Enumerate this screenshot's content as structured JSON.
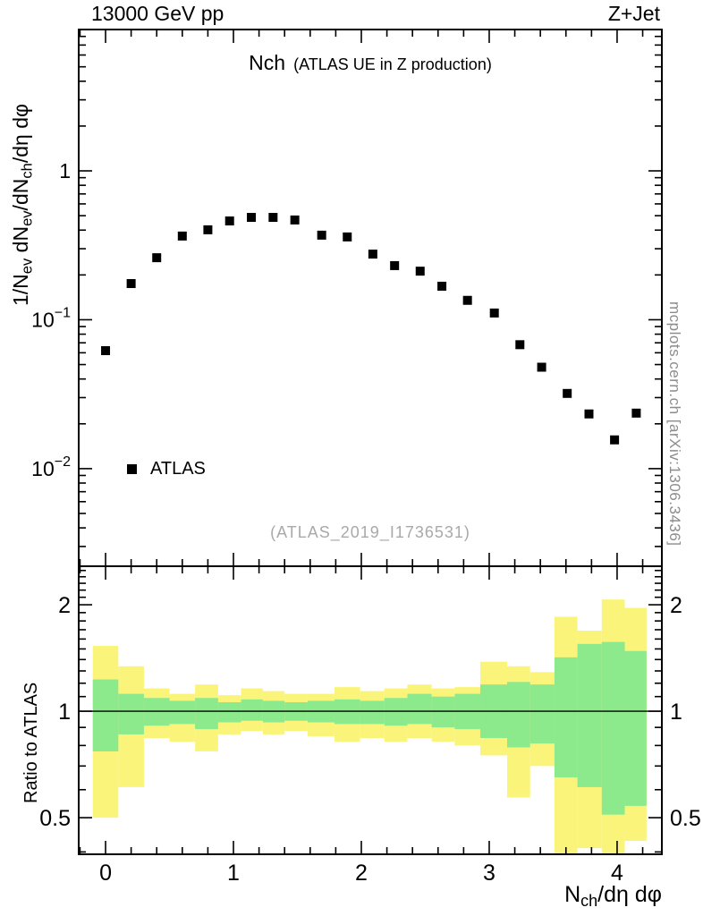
{
  "chart_data": {
    "type": "scatter",
    "top_left": "13000 GeV pp",
    "top_right": "Z+Jet",
    "title": "Nch",
    "title_suffix": "(ATLAS UE in Z production)",
    "watermark": "(ATLAS_2019_I1736531)",
    "side_note": "mcplots.cern.ch [arXiv:1306.3436]",
    "ratio_ylabel": "Ratio to ATLAS",
    "ylabel_parts": [
      {
        "t": "1/N"
      },
      {
        "t": "ev",
        "sub": true
      },
      {
        "t": " dN"
      },
      {
        "t": "ev",
        "sub": true
      },
      {
        "t": "/dN"
      },
      {
        "t": "ch",
        "sub": true
      },
      {
        "t": "/dη dφ"
      }
    ],
    "xlabel_parts": [
      {
        "t": "N"
      },
      {
        "t": "ch",
        "sub": true
      },
      {
        "t": "/dη dφ"
      }
    ],
    "legend": [
      {
        "label": "ATLAS",
        "marker": "filled-square",
        "color": "#000000"
      }
    ],
    "x_range": [
      -0.21,
      4.35
    ],
    "main_y_log_range": [
      0.00221,
      8.9
    ],
    "ratio_y_log_range": [
      0.394,
      2.57
    ],
    "x_major_ticks": [
      0,
      1,
      2,
      3,
      4
    ],
    "x_minor_step": 0.2,
    "main_y_major_ticks": [
      {
        "value": 1,
        "base": "1",
        "exp": ""
      },
      {
        "value": 0.1,
        "base": "10",
        "exp": "−1"
      },
      {
        "value": 0.01,
        "base": "10",
        "exp": "−2"
      }
    ],
    "ratio_y_major_ticks": [
      {
        "value": 0.5,
        "label": "0.5"
      },
      {
        "value": 1,
        "label": "1"
      },
      {
        "value": 2,
        "label": "2"
      }
    ],
    "ratio_y_minor_ticks": [
      0.4,
      0.6,
      0.7,
      0.8,
      0.9,
      1.1,
      1.2,
      1.3,
      1.4,
      1.5,
      1.6,
      1.7,
      1.8,
      1.9,
      2.1,
      2.2,
      2.3,
      2.4,
      2.5
    ],
    "series": [
      {
        "name": "ATLAS",
        "marker": "square",
        "color": "#000000",
        "points": [
          [
            0.0,
            0.062
          ],
          [
            0.2,
            0.175
          ],
          [
            0.4,
            0.261
          ],
          [
            0.6,
            0.365
          ],
          [
            0.8,
            0.402
          ],
          [
            0.97,
            0.461
          ],
          [
            1.14,
            0.487
          ],
          [
            1.31,
            0.487
          ],
          [
            1.48,
            0.468
          ],
          [
            1.69,
            0.37
          ],
          [
            1.89,
            0.36
          ],
          [
            2.09,
            0.276
          ],
          [
            2.26,
            0.231
          ],
          [
            2.46,
            0.212
          ],
          [
            2.63,
            0.168
          ],
          [
            2.83,
            0.135
          ],
          [
            3.04,
            0.111
          ],
          [
            3.24,
            0.068
          ],
          [
            3.41,
            0.048
          ],
          [
            3.61,
            0.032
          ],
          [
            3.78,
            0.0233
          ],
          [
            3.98,
            0.0156
          ],
          [
            4.15,
            0.0236
          ]
        ]
      }
    ],
    "ratio": {
      "line_y": 1,
      "yellow_color": "#faf57a",
      "green_color": "#8ce98c",
      "bands": [
        {
          "x": [
            -0.1,
            0.1
          ],
          "yellow": [
            0.5,
            1.53
          ],
          "green": [
            0.77,
            1.23
          ]
        },
        {
          "x": [
            0.1,
            0.3
          ],
          "yellow": [
            0.61,
            1.34
          ],
          "green": [
            0.86,
            1.12
          ]
        },
        {
          "x": [
            0.3,
            0.5
          ],
          "yellow": [
            0.84,
            1.16
          ],
          "green": [
            0.91,
            1.09
          ]
        },
        {
          "x": [
            0.5,
            0.7
          ],
          "yellow": [
            0.82,
            1.12
          ],
          "green": [
            0.92,
            1.07
          ]
        },
        {
          "x": [
            0.7,
            0.88
          ],
          "yellow": [
            0.77,
            1.19
          ],
          "green": [
            0.89,
            1.09
          ]
        },
        {
          "x": [
            0.88,
            1.06
          ],
          "yellow": [
            0.86,
            1.11
          ],
          "green": [
            0.93,
            1.06
          ]
        },
        {
          "x": [
            1.06,
            1.23
          ],
          "yellow": [
            0.88,
            1.16
          ],
          "green": [
            0.94,
            1.08
          ]
        },
        {
          "x": [
            1.23,
            1.4
          ],
          "yellow": [
            0.86,
            1.14
          ],
          "green": [
            0.93,
            1.07
          ]
        },
        {
          "x": [
            1.4,
            1.58
          ],
          "yellow": [
            0.88,
            1.12
          ],
          "green": [
            0.94,
            1.06
          ]
        },
        {
          "x": [
            1.58,
            1.79
          ],
          "yellow": [
            0.85,
            1.12
          ],
          "green": [
            0.93,
            1.07
          ]
        },
        {
          "x": [
            1.79,
            1.99
          ],
          "yellow": [
            0.82,
            1.17
          ],
          "green": [
            0.92,
            1.08
          ]
        },
        {
          "x": [
            1.99,
            2.18
          ],
          "yellow": [
            0.84,
            1.14
          ],
          "green": [
            0.92,
            1.07
          ]
        },
        {
          "x": [
            2.18,
            2.36
          ],
          "yellow": [
            0.82,
            1.16
          ],
          "green": [
            0.91,
            1.09
          ]
        },
        {
          "x": [
            2.36,
            2.55
          ],
          "yellow": [
            0.84,
            1.19
          ],
          "green": [
            0.92,
            1.12
          ]
        },
        {
          "x": [
            2.55,
            2.73
          ],
          "yellow": [
            0.82,
            1.16
          ],
          "green": [
            0.9,
            1.1
          ]
        },
        {
          "x": [
            2.73,
            2.93
          ],
          "yellow": [
            0.8,
            1.17
          ],
          "green": [
            0.89,
            1.12
          ]
        },
        {
          "x": [
            2.93,
            3.14
          ],
          "yellow": [
            0.75,
            1.38
          ],
          "green": [
            0.84,
            1.19
          ]
        },
        {
          "x": [
            3.14,
            3.32
          ],
          "yellow": [
            0.57,
            1.34
          ],
          "green": [
            0.79,
            1.21
          ]
        },
        {
          "x": [
            3.32,
            3.51
          ],
          "yellow": [
            0.7,
            1.29
          ],
          "green": [
            0.81,
            1.19
          ]
        },
        {
          "x": [
            3.51,
            3.69
          ],
          "yellow": [
            0.3,
            1.85
          ],
          "green": [
            0.65,
            1.42
          ]
        },
        {
          "x": [
            3.69,
            3.88
          ],
          "yellow": [
            0.41,
            1.69
          ],
          "green": [
            0.61,
            1.55
          ]
        },
        {
          "x": [
            3.88,
            4.06
          ],
          "yellow": [
            0.3,
            2.07
          ],
          "green": [
            0.51,
            1.57
          ]
        },
        {
          "x": [
            4.06,
            4.23
          ],
          "yellow": [
            0.43,
            1.96
          ],
          "green": [
            0.54,
            1.48
          ]
        }
      ]
    }
  }
}
